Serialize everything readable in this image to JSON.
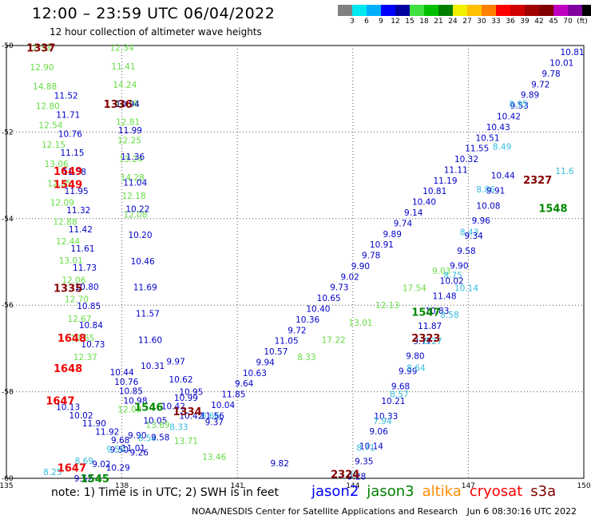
{
  "header": {
    "title": "12:00 – 23:59 UTC 06/04/2022",
    "subtitle": "12 hour collection of altimeter wave heights"
  },
  "color_scale": {
    "colors": [
      "#808080",
      "#00e8f0",
      "#00b0ff",
      "#0000ff",
      "#0000a0",
      "#40e040",
      "#00c000",
      "#008000",
      "#f0f000",
      "#ffc000",
      "#ff8000",
      "#ff0000",
      "#d00000",
      "#a00000",
      "#800000",
      "#c000c0",
      "#8000a0",
      "#000000"
    ],
    "labels": [
      "3",
      "6",
      "9",
      "12",
      "15",
      "18",
      "21",
      "24",
      "27",
      "30",
      "33",
      "36",
      "39",
      "42",
      "45",
      "70",
      "(ft)"
    ]
  },
  "axes": {
    "x_ticks": [
      "135",
      "138",
      "141",
      "144",
      "147",
      "150"
    ],
    "y_ticks": [
      "-50",
      "-52",
      "-54",
      "-56",
      "-58",
      "-60"
    ]
  },
  "footer": {
    "note": "note:  1) Time is in UTC;  2) SWH is in feet",
    "satellites": [
      {
        "name": "jason2",
        "color": "#0000ff"
      },
      {
        "name": "jason3",
        "color": "#008000"
      },
      {
        "name": "altika",
        "color": "#ff8c00"
      },
      {
        "name": "cryosat",
        "color": "#ff0000"
      },
      {
        "name": "s3a",
        "color": "#800000"
      }
    ],
    "credit_org": "NOAA/NESDIS Center for Satellite Applications and Research",
    "credit_time": "Jun  6 08:30:16 UTC 2022"
  },
  "map_data": {
    "label_colors": {
      "blue": "#0000c8",
      "green": "#66dd44",
      "cyan": "#33bbdd",
      "red": "#ee0000",
      "maroon": "#880000",
      "dgreen": "#008800"
    },
    "times": [
      {
        "text": "1337",
        "lon": 135.9,
        "lat": -50.05,
        "color": "maroon"
      },
      {
        "text": "1336",
        "lon": 137.9,
        "lat": -51.35,
        "color": "maroon"
      },
      {
        "text": "1649",
        "lon": 136.6,
        "lat": -52.9,
        "color": "red"
      },
      {
        "text": "1549",
        "lon": 136.6,
        "lat": -53.2,
        "color": "red"
      },
      {
        "text": "1335",
        "lon": 136.6,
        "lat": -55.6,
        "color": "maroon"
      },
      {
        "text": "1648",
        "lon": 136.7,
        "lat": -56.75,
        "color": "red"
      },
      {
        "text": "1648",
        "lon": 136.6,
        "lat": -57.45,
        "color": "red"
      },
      {
        "text": "1647",
        "lon": 136.4,
        "lat": -58.2,
        "color": "red"
      },
      {
        "text": "1334",
        "lon": 139.7,
        "lat": -58.45,
        "color": "maroon"
      },
      {
        "text": "1546",
        "lon": 138.7,
        "lat": -58.35,
        "color": "dgreen"
      },
      {
        "text": "1647",
        "lon": 136.7,
        "lat": -59.75,
        "color": "red"
      },
      {
        "text": "1545",
        "lon": 137.3,
        "lat": -60.0,
        "color": "dgreen"
      },
      {
        "text": "2324",
        "lon": 143.8,
        "lat": -59.9,
        "color": "maroon"
      },
      {
        "text": "2323",
        "lon": 145.9,
        "lat": -56.75,
        "color": "maroon"
      },
      {
        "text": "1547",
        "lon": 145.9,
        "lat": -56.15,
        "color": "dgreen"
      },
      {
        "text": "2327",
        "lon": 148.8,
        "lat": -53.1,
        "color": "maroon"
      },
      {
        "text": "1548",
        "lon": 149.2,
        "lat": -53.75,
        "color": "dgreen"
      }
    ],
    "tracks": [
      {
        "color": "green",
        "lon1": 135.85,
        "lat1": -50.05,
        "lon2": 137.05,
        "lat2": -57.2,
        "values": [
          "12.53",
          "12.90",
          "14.88",
          "12.80",
          "12.54",
          "12.15",
          "13.06",
          "12.35",
          "12.09",
          "12.88",
          "12.44",
          "13.01",
          "12.06",
          "12.70",
          "12.67",
          "12.65",
          "12.37"
        ]
      },
      {
        "color": "blue",
        "lon1": 136.55,
        "lat1": -51.15,
        "lon2": 137.25,
        "lat2": -56.9,
        "values": [
          "11.52",
          "11.71",
          "10.76",
          "11.15",
          "11.58",
          "11.95",
          "11.32",
          "11.42",
          "11.61",
          "11.73",
          "10.80",
          "10.85",
          "10.84",
          "10.73"
        ]
      },
      {
        "color": "green",
        "lon1": 138.0,
        "lat1": -50.05,
        "lon2": 138.35,
        "lat2": -53.9,
        "values": [
          "12.34",
          "11.41",
          "14.24",
          "12.38",
          "12.81",
          "12.25",
          "13.24",
          "14.28",
          "12.18",
          "12.08"
        ]
      },
      {
        "color": "blue",
        "lon1": 138.15,
        "lat1": -51.35,
        "lon2": 138.8,
        "lat2": -57.4,
        "values": [
          "10.94",
          "11.99",
          "11.36",
          "11.04",
          "10.22",
          "10.20",
          "10.46",
          "11.69",
          "11.57",
          "11.60",
          "10.31"
        ]
      },
      {
        "color": "blue",
        "lon1": 139.4,
        "lat1": -57.3,
        "lon2": 139.8,
        "lat2": -58.55,
        "values": [
          "9.97",
          "10.62",
          "10.99",
          "10.42"
        ]
      },
      {
        "color": "blue",
        "lon1": 138.0,
        "lat1": -57.55,
        "lon2": 138.35,
        "lat2": -58.2,
        "values": [
          "10.44",
          "10.76",
          "10.85",
          "10.98"
        ]
      },
      {
        "color": "blue",
        "lon1": 139.8,
        "lat1": -58.0,
        "lon2": 137.0,
        "lat2": -60.0,
        "values": [
          "10.95",
          "10.42",
          "10.05",
          "9.90",
          "9.50",
          "9.02",
          "9.52"
        ]
      },
      {
        "color": "blue",
        "lon1": 136.6,
        "lat1": -58.35,
        "lon2": 138.3,
        "lat2": -59.3,
        "values": [
          "10.13",
          "10.02",
          "11.90",
          "11.92",
          "9.68",
          "11.01"
        ]
      },
      {
        "color": "cyan",
        "lon1": 136.2,
        "lat1": -59.85,
        "lon2": 140.3,
        "lat2": -58.55,
        "values": [
          "8.25",
          "8.69",
          "9.50",
          "8.54",
          "8.33",
          "8.66"
        ]
      },
      {
        "color": "green",
        "lon1": 138.2,
        "lat1": -58.4,
        "lon2": 140.4,
        "lat2": -59.5,
        "values": [
          "12.09",
          "13.69",
          "13.71",
          "13.46"
        ]
      },
      {
        "color": "blue",
        "lon1": 140.4,
        "lat1": -58.7,
        "lon2": 142.1,
        "lat2": -59.65,
        "values": [
          "9.37",
          "9.82"
        ]
      },
      {
        "color": "blue",
        "lon1": 137.9,
        "lat1": -59.75,
        "lon2": 139.0,
        "lat2": -59.05,
        "values": [
          "10.29",
          "9.26",
          "9.58"
        ]
      },
      {
        "color": "blue",
        "lon1": 140.35,
        "lat1": -58.55,
        "lon2": 149.7,
        "lat2": -50.15,
        "values": [
          "11.56",
          "10.04",
          "11.85",
          "9.64",
          "10.63",
          "9.94",
          "10.57",
          "11.05",
          "9.72",
          "10.36",
          "10.40",
          "10.65",
          "9.73",
          "9.02",
          "9.90",
          "9.78",
          "10.91",
          "9.89",
          "9.74",
          "9.14",
          "10.40",
          "10.81",
          "11.19",
          "11.11",
          "10.32",
          "11.55",
          "10.51",
          "10.43",
          "10.42",
          "9.53",
          "9.89",
          "9.72",
          "9.78",
          "10.01",
          "10.81"
        ]
      },
      {
        "color": "green",
        "lon1": 142.8,
        "lat1": -57.2,
        "lon2": 146.3,
        "lat2": -55.2,
        "values": [
          "8.33",
          "17.22",
          "13.01",
          "12.13",
          "17.54",
          "9.03"
        ]
      },
      {
        "color": "cyan",
        "lon1": 146.6,
        "lat1": -55.3,
        "lon2": 148.3,
        "lat2": -51.35,
        "values": [
          "8.75",
          "8.43",
          "8.86",
          "8.49",
          "8.95"
        ]
      },
      {
        "color": "blue",
        "lon1": 144.1,
        "lat1": -59.95,
        "lon2": 147.9,
        "lat2": -53.0,
        "values": [
          "9.28",
          "9.35",
          "10.14",
          "9.06",
          "10.33",
          "10.21",
          "9.68",
          "9.99",
          "9.80",
          "9.77",
          "11.87",
          "10.83",
          "11.48",
          "10.02",
          "9.90",
          "9.58",
          "9.34",
          "9.96",
          "10.08",
          "9.91",
          "10.44"
        ]
      },
      {
        "color": "cyan",
        "lon1": 143.9,
        "lat1": -59.9,
        "lon2": 146.95,
        "lat2": -55.6,
        "values": [
          "7.39",
          "8.71",
          "7.94",
          "8.57",
          "8.64",
          "8.27",
          "8.58",
          "10.14"
        ]
      },
      {
        "color": "cyan",
        "lon1": 149.5,
        "lat1": -52.9,
        "lon2": 150.0,
        "lat2": -52.8,
        "values": [
          "11.6"
        ]
      }
    ]
  }
}
